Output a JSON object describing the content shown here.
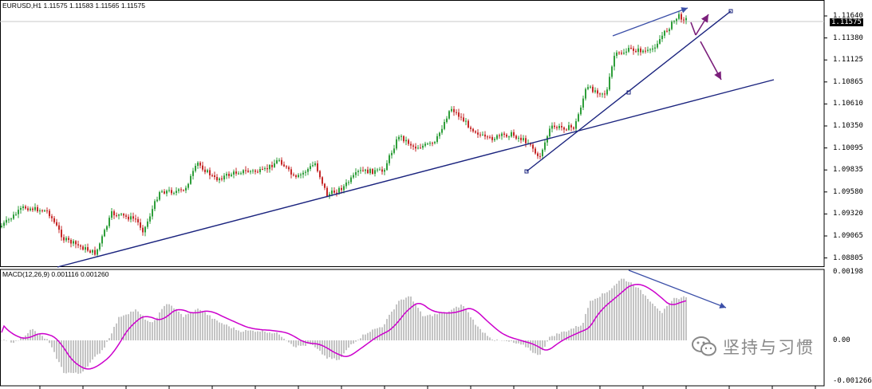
{
  "main_panel": {
    "title": "EURUSD,H1  1.11575 1.11583 1.11565 1.11575",
    "current_price": "1.11575",
    "price_ticks": [
      "1.11640",
      "1.11380",
      "1.11125",
      "1.10865",
      "1.10610",
      "1.10350",
      "1.10095",
      "1.09835",
      "1.09580",
      "1.09320",
      "1.09065",
      "1.08805"
    ]
  },
  "macd_panel": {
    "title": "MACD(12,26,9) 0.001116 0.001260",
    "ticks": [
      "0.00198",
      "0.00",
      "-0.001266"
    ]
  },
  "watermark": {
    "text": "坚持与习惯",
    "icon": "wechat-icon"
  },
  "colors": {
    "bull": "#2e9e3a",
    "bear": "#c62828",
    "trend": "#1a237e",
    "macd_hist": "#8a8a8a",
    "signal": "#cc00cc",
    "arrow_blue": "#3b4fa8",
    "arrow_purple": "#7b1f7b"
  }
}
